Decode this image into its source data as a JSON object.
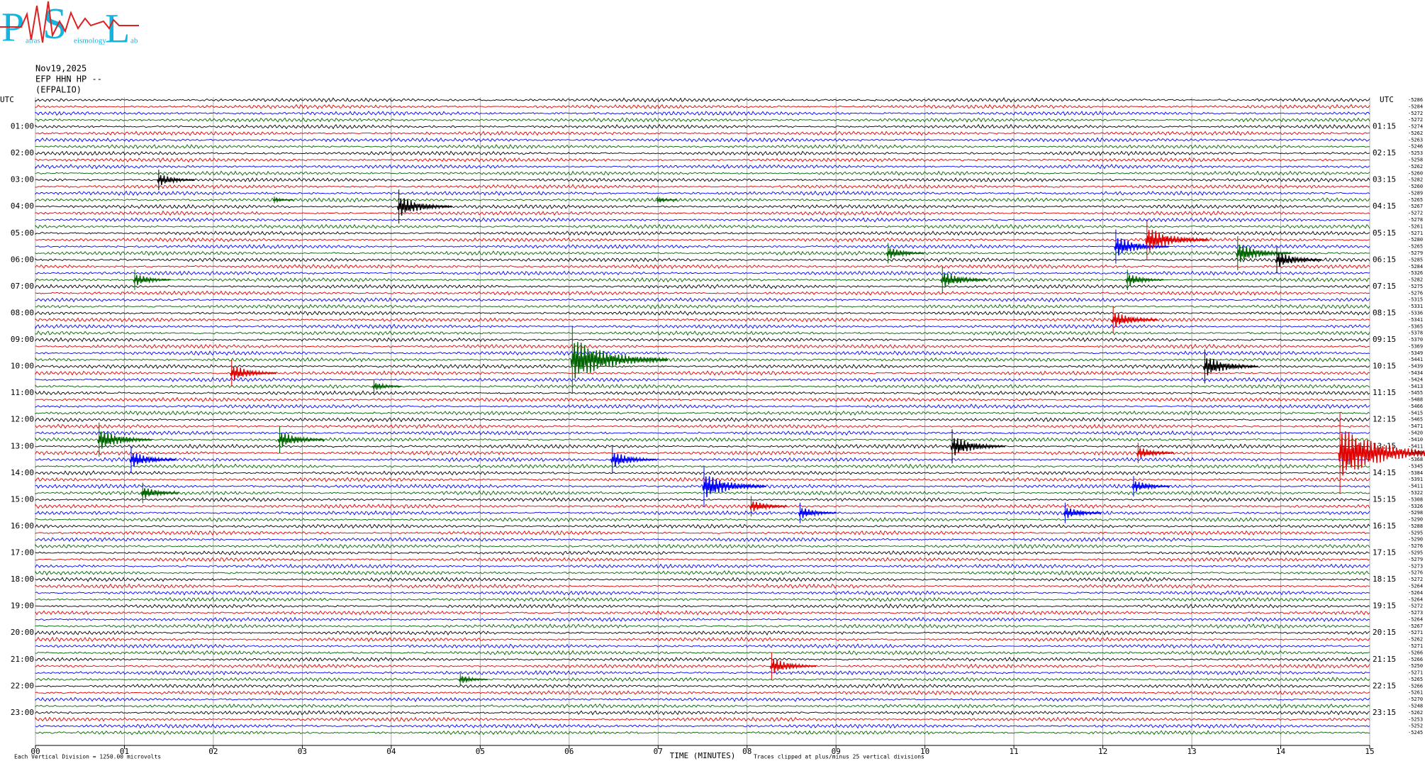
{
  "chart_data": {
    "type": "helicorder",
    "logo": {
      "letters": [
        "P",
        "S",
        "L"
      ],
      "words": [
        "atras",
        "eismology",
        "ab"
      ]
    },
    "date": "Nov19,2025",
    "channel": "EFP HHN HP --",
    "station": "(EFPALIO)",
    "utc_label": "UTC",
    "left_hours": [
      "01:00",
      "02:00",
      "03:00",
      "04:00",
      "05:00",
      "06:00",
      "07:00",
      "08:00",
      "09:00",
      "10:00",
      "11:00",
      "12:00",
      "13:00",
      "14:00",
      "15:00",
      "16:00",
      "17:00",
      "18:00",
      "19:00",
      "20:00",
      "21:00",
      "22:00",
      "23:00"
    ],
    "right_hours": [
      "01:15",
      "02:15",
      "03:15",
      "04:15",
      "05:15",
      "06:15",
      "07:15",
      "08:15",
      "09:15",
      "10:15",
      "11:15",
      "12:15",
      "13:15",
      "14:15",
      "15:15",
      "16:15",
      "17:15",
      "18:15",
      "19:15",
      "20:15",
      "21:15",
      "22:15",
      "23:15"
    ],
    "trace_colors": [
      "#000000",
      "#e00000",
      "#0000ff",
      "#006400"
    ],
    "trace_offsets": [
      -5286,
      -5284,
      -5272,
      -5272,
      -5274,
      -5262,
      -5263,
      -5246,
      -5253,
      -5258,
      -5262,
      -5260,
      -5282,
      -5260,
      -5289,
      -5265,
      -5267,
      -5272,
      -5278,
      -5261,
      -5271,
      -5280,
      -5265,
      -5279,
      -5285,
      -5284,
      -5326,
      -5282,
      -5275,
      -5276,
      -5315,
      -5331,
      -5336,
      -5341,
      -5365,
      -5378,
      -5370,
      -5369,
      -5349,
      -5441,
      -5439,
      -5434,
      -5424,
      -5413,
      -5455,
      -5488,
      -5466,
      -5415,
      -5465,
      -5471,
      -5420,
      -5410,
      -5411,
      -5382,
      -5368,
      -5345,
      -5384,
      -5391,
      -5411,
      -5322,
      -5308,
      -5326,
      -5298,
      -5290,
      -5288,
      -5295,
      -5290,
      -5276,
      -5295,
      -5279,
      -5273,
      -5276,
      -5272,
      -5264,
      -5264,
      -5264,
      -5272,
      -5273,
      -5264,
      -5267,
      -5271,
      -5262,
      -5271,
      -5266,
      -5266,
      -5250,
      -5271,
      -5265,
      -5266,
      -5261,
      -5270,
      -5248,
      -5262,
      -5253,
      -5252,
      -5245
    ],
    "xlim": [
      0,
      15
    ],
    "xticks": [
      {
        "value": 0,
        "label": "00"
      },
      {
        "value": 1,
        "label": "01"
      },
      {
        "value": 2,
        "label": "02"
      },
      {
        "value": 3,
        "label": "03"
      },
      {
        "value": 4,
        "label": "04"
      },
      {
        "value": 5,
        "label": "05"
      },
      {
        "value": 6,
        "label": "06"
      },
      {
        "value": 7,
        "label": "07"
      },
      {
        "value": 8,
        "label": "08"
      },
      {
        "value": 9,
        "label": "09"
      },
      10,
      11,
      12,
      13,
      14,
      15
    ],
    "xlabel": "TIME (MINUTES)",
    "scale_note": "Each Vertical Division = 1250.00 microvolts",
    "clip_note": "Traces clipped at plus/minus 25 vertical divisions",
    "events": [
      {
        "trace": 12,
        "minute": 1.37,
        "amplitude": 3
      },
      {
        "trace": 15,
        "minute": 2.67,
        "amplitude": 1
      },
      {
        "trace": 16,
        "minute": 4.07,
        "amplitude": 5
      },
      {
        "trace": 15,
        "minute": 6.98,
        "amplitude": 1
      },
      {
        "trace": 22,
        "minute": 12.13,
        "amplitude": 5
      },
      {
        "trace": 21,
        "minute": 12.48,
        "amplitude": 6
      },
      {
        "trace": 23,
        "minute": 9.57,
        "amplitude": 3
      },
      {
        "trace": 23,
        "minute": 13.5,
        "amplitude": 5
      },
      {
        "trace": 24,
        "minute": 13.94,
        "amplitude": 4
      },
      {
        "trace": 27,
        "minute": 1.1,
        "amplitude": 3
      },
      {
        "trace": 27,
        "minute": 10.18,
        "amplitude": 4
      },
      {
        "trace": 27,
        "minute": 12.26,
        "amplitude": 3
      },
      {
        "trace": 33,
        "minute": 12.1,
        "amplitude": 4
      },
      {
        "trace": 39,
        "minute": 6.02,
        "amplitude": 10
      },
      {
        "trace": 41,
        "minute": 2.19,
        "amplitude": 4
      },
      {
        "trace": 40,
        "minute": 13.13,
        "amplitude": 5
      },
      {
        "trace": 43,
        "minute": 3.79,
        "amplitude": 2
      },
      {
        "trace": 51,
        "minute": 0.7,
        "amplitude": 5
      },
      {
        "trace": 51,
        "minute": 2.73,
        "amplitude": 4
      },
      {
        "trace": 54,
        "minute": 1.06,
        "amplitude": 4
      },
      {
        "trace": 52,
        "minute": 10.29,
        "amplitude": 5
      },
      {
        "trace": 53,
        "minute": 12.38,
        "amplitude": 3
      },
      {
        "trace": 53,
        "minute": 14.65,
        "amplitude": 12
      },
      {
        "trace": 59,
        "minute": 1.19,
        "amplitude": 3
      },
      {
        "trace": 54,
        "minute": 6.47,
        "amplitude": 4
      },
      {
        "trace": 58,
        "minute": 7.5,
        "amplitude": 6
      },
      {
        "trace": 58,
        "minute": 12.33,
        "amplitude": 3
      },
      {
        "trace": 61,
        "minute": 8.03,
        "amplitude": 3
      },
      {
        "trace": 62,
        "minute": 8.58,
        "amplitude": 3
      },
      {
        "trace": 62,
        "minute": 11.56,
        "amplitude": 3
      },
      {
        "trace": 85,
        "minute": 8.26,
        "amplitude": 4
      },
      {
        "trace": 87,
        "minute": 4.76,
        "amplitude": 2
      }
    ]
  }
}
